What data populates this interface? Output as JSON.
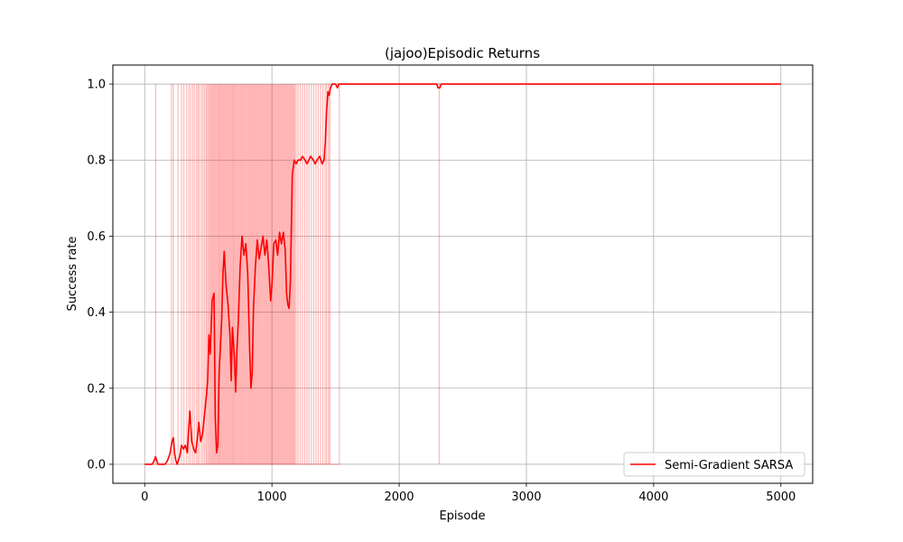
{
  "chart_data": {
    "type": "line",
    "title": "(jajoo)Episodic Returns",
    "xlabel": "Episode",
    "ylabel": "Success rate",
    "xlim": [
      -250,
      5250
    ],
    "ylim": [
      -0.05,
      1.05
    ],
    "xticks": [
      0,
      1000,
      2000,
      3000,
      4000,
      5000
    ],
    "xtick_labels": [
      "0",
      "1000",
      "2000",
      "3000",
      "4000",
      "5000"
    ],
    "yticks": [
      0.0,
      0.2,
      0.4,
      0.6,
      0.8,
      1.0
    ],
    "ytick_labels": [
      "0.0",
      "0.2",
      "0.4",
      "0.6",
      "0.8",
      "1.0"
    ],
    "grid": true,
    "legend_position": "lower-right",
    "colors": {
      "series": "#ff0000",
      "raw": "#ff0000",
      "grid": "#b0b0b0",
      "axes": "#000000"
    },
    "series": [
      {
        "name": "Semi-Gradient SARSA",
        "color": "#ff0000",
        "points": [
          [
            0,
            0.0
          ],
          [
            60,
            0.0
          ],
          [
            75,
            0.01
          ],
          [
            85,
            0.02
          ],
          [
            95,
            0.01
          ],
          [
            105,
            0.0
          ],
          [
            160,
            0.0
          ],
          [
            180,
            0.01
          ],
          [
            200,
            0.03
          ],
          [
            215,
            0.06
          ],
          [
            225,
            0.07
          ],
          [
            235,
            0.03
          ],
          [
            245,
            0.01
          ],
          [
            255,
            0.0
          ],
          [
            275,
            0.02
          ],
          [
            290,
            0.05
          ],
          [
            305,
            0.04
          ],
          [
            320,
            0.05
          ],
          [
            335,
            0.03
          ],
          [
            345,
            0.09
          ],
          [
            355,
            0.14
          ],
          [
            370,
            0.06
          ],
          [
            385,
            0.04
          ],
          [
            400,
            0.03
          ],
          [
            415,
            0.07
          ],
          [
            425,
            0.11
          ],
          [
            440,
            0.06
          ],
          [
            455,
            0.08
          ],
          [
            470,
            0.13
          ],
          [
            485,
            0.18
          ],
          [
            495,
            0.22
          ],
          [
            505,
            0.34
          ],
          [
            515,
            0.29
          ],
          [
            530,
            0.43
          ],
          [
            545,
            0.45
          ],
          [
            555,
            0.12
          ],
          [
            565,
            0.03
          ],
          [
            575,
            0.05
          ],
          [
            585,
            0.24
          ],
          [
            595,
            0.31
          ],
          [
            605,
            0.38
          ],
          [
            615,
            0.5
          ],
          [
            625,
            0.56
          ],
          [
            640,
            0.47
          ],
          [
            655,
            0.42
          ],
          [
            670,
            0.34
          ],
          [
            680,
            0.22
          ],
          [
            690,
            0.36
          ],
          [
            705,
            0.28
          ],
          [
            715,
            0.19
          ],
          [
            725,
            0.3
          ],
          [
            735,
            0.37
          ],
          [
            750,
            0.52
          ],
          [
            765,
            0.6
          ],
          [
            780,
            0.55
          ],
          [
            795,
            0.58
          ],
          [
            810,
            0.5
          ],
          [
            825,
            0.3
          ],
          [
            835,
            0.2
          ],
          [
            845,
            0.24
          ],
          [
            855,
            0.41
          ],
          [
            870,
            0.52
          ],
          [
            885,
            0.59
          ],
          [
            900,
            0.54
          ],
          [
            915,
            0.57
          ],
          [
            930,
            0.6
          ],
          [
            945,
            0.55
          ],
          [
            960,
            0.59
          ],
          [
            975,
            0.52
          ],
          [
            990,
            0.43
          ],
          [
            1000,
            0.47
          ],
          [
            1015,
            0.58
          ],
          [
            1030,
            0.59
          ],
          [
            1045,
            0.55
          ],
          [
            1060,
            0.61
          ],
          [
            1075,
            0.58
          ],
          [
            1090,
            0.61
          ],
          [
            1105,
            0.56
          ],
          [
            1115,
            0.45
          ],
          [
            1125,
            0.42
          ],
          [
            1135,
            0.41
          ],
          [
            1145,
            0.48
          ],
          [
            1160,
            0.76
          ],
          [
            1175,
            0.8
          ],
          [
            1190,
            0.79
          ],
          [
            1205,
            0.8
          ],
          [
            1225,
            0.8
          ],
          [
            1240,
            0.81
          ],
          [
            1260,
            0.8
          ],
          [
            1275,
            0.79
          ],
          [
            1290,
            0.8
          ],
          [
            1305,
            0.81
          ],
          [
            1325,
            0.8
          ],
          [
            1340,
            0.79
          ],
          [
            1355,
            0.8
          ],
          [
            1375,
            0.81
          ],
          [
            1395,
            0.79
          ],
          [
            1410,
            0.8
          ],
          [
            1420,
            0.85
          ],
          [
            1430,
            0.93
          ],
          [
            1440,
            0.98
          ],
          [
            1450,
            0.97
          ],
          [
            1460,
            0.99
          ],
          [
            1475,
            1.0
          ],
          [
            1500,
            1.0
          ],
          [
            1515,
            0.99
          ],
          [
            1525,
            1.0
          ],
          [
            2295,
            1.0
          ],
          [
            2305,
            0.99
          ],
          [
            2320,
            0.99
          ],
          [
            2330,
            1.0
          ],
          [
            5000,
            1.0
          ]
        ]
      }
    ],
    "raw_success_episodes": [
      87,
      210,
      225,
      262,
      290,
      308,
      330,
      348,
      362,
      378,
      392,
      408,
      420,
      432,
      448,
      460,
      472,
      484,
      494,
      503,
      512,
      520,
      528,
      536,
      544,
      552,
      560,
      568,
      576,
      584,
      590,
      598,
      606,
      614,
      622,
      630,
      638,
      646,
      654,
      662,
      670,
      678,
      686,
      694,
      700,
      708,
      716,
      724,
      732,
      740,
      748,
      756,
      764,
      772,
      780,
      788,
      796,
      804,
      812,
      820,
      828,
      836,
      844,
      852,
      860,
      868,
      876,
      884,
      892,
      900,
      908,
      916,
      924,
      932,
      940,
      948,
      956,
      964,
      972,
      980,
      988,
      996,
      1004,
      1012,
      1020,
      1028,
      1036,
      1044,
      1052,
      1060,
      1068,
      1076,
      1084,
      1092,
      1100,
      1108,
      1116,
      1124,
      1132,
      1140,
      1148,
      1156,
      1164,
      1172,
      1180,
      1190,
      1205,
      1222,
      1240,
      1258,
      1275,
      1292,
      1310,
      1328,
      1346,
      1364,
      1382,
      1400,
      1418,
      1430,
      1445,
      1455,
      1530,
      2315
    ]
  }
}
